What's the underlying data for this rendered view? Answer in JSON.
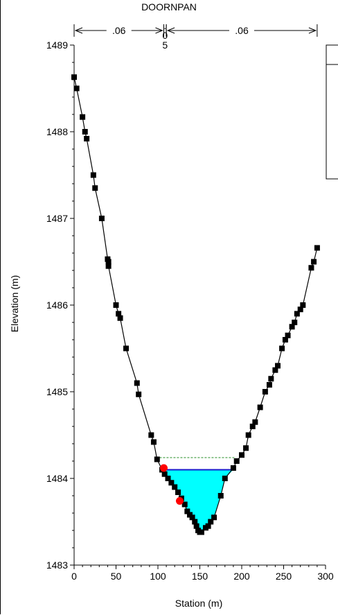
{
  "chart_data": {
    "type": "line",
    "title": "DOORNPAN",
    "xlabel": "Station (m)",
    "ylabel": "Elevation (m)",
    "xlim": [
      0,
      300
    ],
    "ylim": [
      1483,
      1489
    ],
    "xticks": [
      0,
      50,
      100,
      150,
      200,
      250,
      300
    ],
    "yticks": [
      1483,
      1484,
      1485,
      1486,
      1487,
      1488,
      1489
    ],
    "manning_n": [
      {
        "label": ".06",
        "from": 0,
        "to": 107
      },
      {
        "label": ".05",
        "from": 107,
        "to": 110
      },
      {
        "label": ".06",
        "from": 110,
        "to": 290
      }
    ],
    "ground_profile": {
      "x": [
        0,
        3,
        10,
        13,
        15,
        23,
        25,
        33,
        40,
        41,
        41,
        50,
        53,
        55,
        62,
        75,
        77,
        92,
        95,
        99,
        105,
        108,
        112,
        116,
        120,
        124,
        128,
        132,
        135,
        138,
        141,
        144,
        146,
        148,
        150,
        152,
        157,
        160,
        163,
        167,
        175,
        180,
        190,
        194,
        200,
        205,
        208,
        213,
        216,
        222,
        228,
        233,
        235,
        240,
        243,
        248,
        252,
        255,
        260,
        263,
        266,
        270,
        273,
        283,
        286,
        290
      ],
      "y": [
        1488.63,
        1488.5,
        1488.17,
        1488.0,
        1487.92,
        1487.5,
        1487.35,
        1487.0,
        1486.53,
        1486.5,
        1486.45,
        1486.0,
        1485.9,
        1485.85,
        1485.5,
        1485.1,
        1484.97,
        1484.5,
        1484.42,
        1484.22,
        1484.1,
        1484.05,
        1484.0,
        1483.95,
        1483.9,
        1483.84,
        1483.77,
        1483.7,
        1483.62,
        1483.58,
        1483.55,
        1483.5,
        1483.45,
        1483.4,
        1483.38,
        1483.38,
        1483.43,
        1483.45,
        1483.5,
        1483.55,
        1483.8,
        1484.0,
        1484.12,
        1484.2,
        1484.27,
        1484.35,
        1484.5,
        1484.6,
        1484.65,
        1484.82,
        1485.0,
        1485.08,
        1485.15,
        1485.25,
        1485.3,
        1485.5,
        1485.6,
        1485.65,
        1485.75,
        1485.8,
        1485.9,
        1485.95,
        1486.0,
        1486.43,
        1486.5,
        1486.66
      ]
    },
    "bank_stations": [
      {
        "x": 107,
        "y": 1484.12
      },
      {
        "x": 126,
        "y": 1483.74
      }
    ],
    "water_surface": {
      "elevation": 1484.1,
      "x_left": 108,
      "x_right": 190,
      "fill": "#00ffff",
      "line": "#1a1acc"
    },
    "energy_grade_line": {
      "elevation": 1484.24,
      "x_left": 102,
      "x_right": 192,
      "color": "#228B22"
    },
    "legend": {
      "position": "top-right",
      "visible": "partial",
      "entries": []
    },
    "grid": false
  }
}
